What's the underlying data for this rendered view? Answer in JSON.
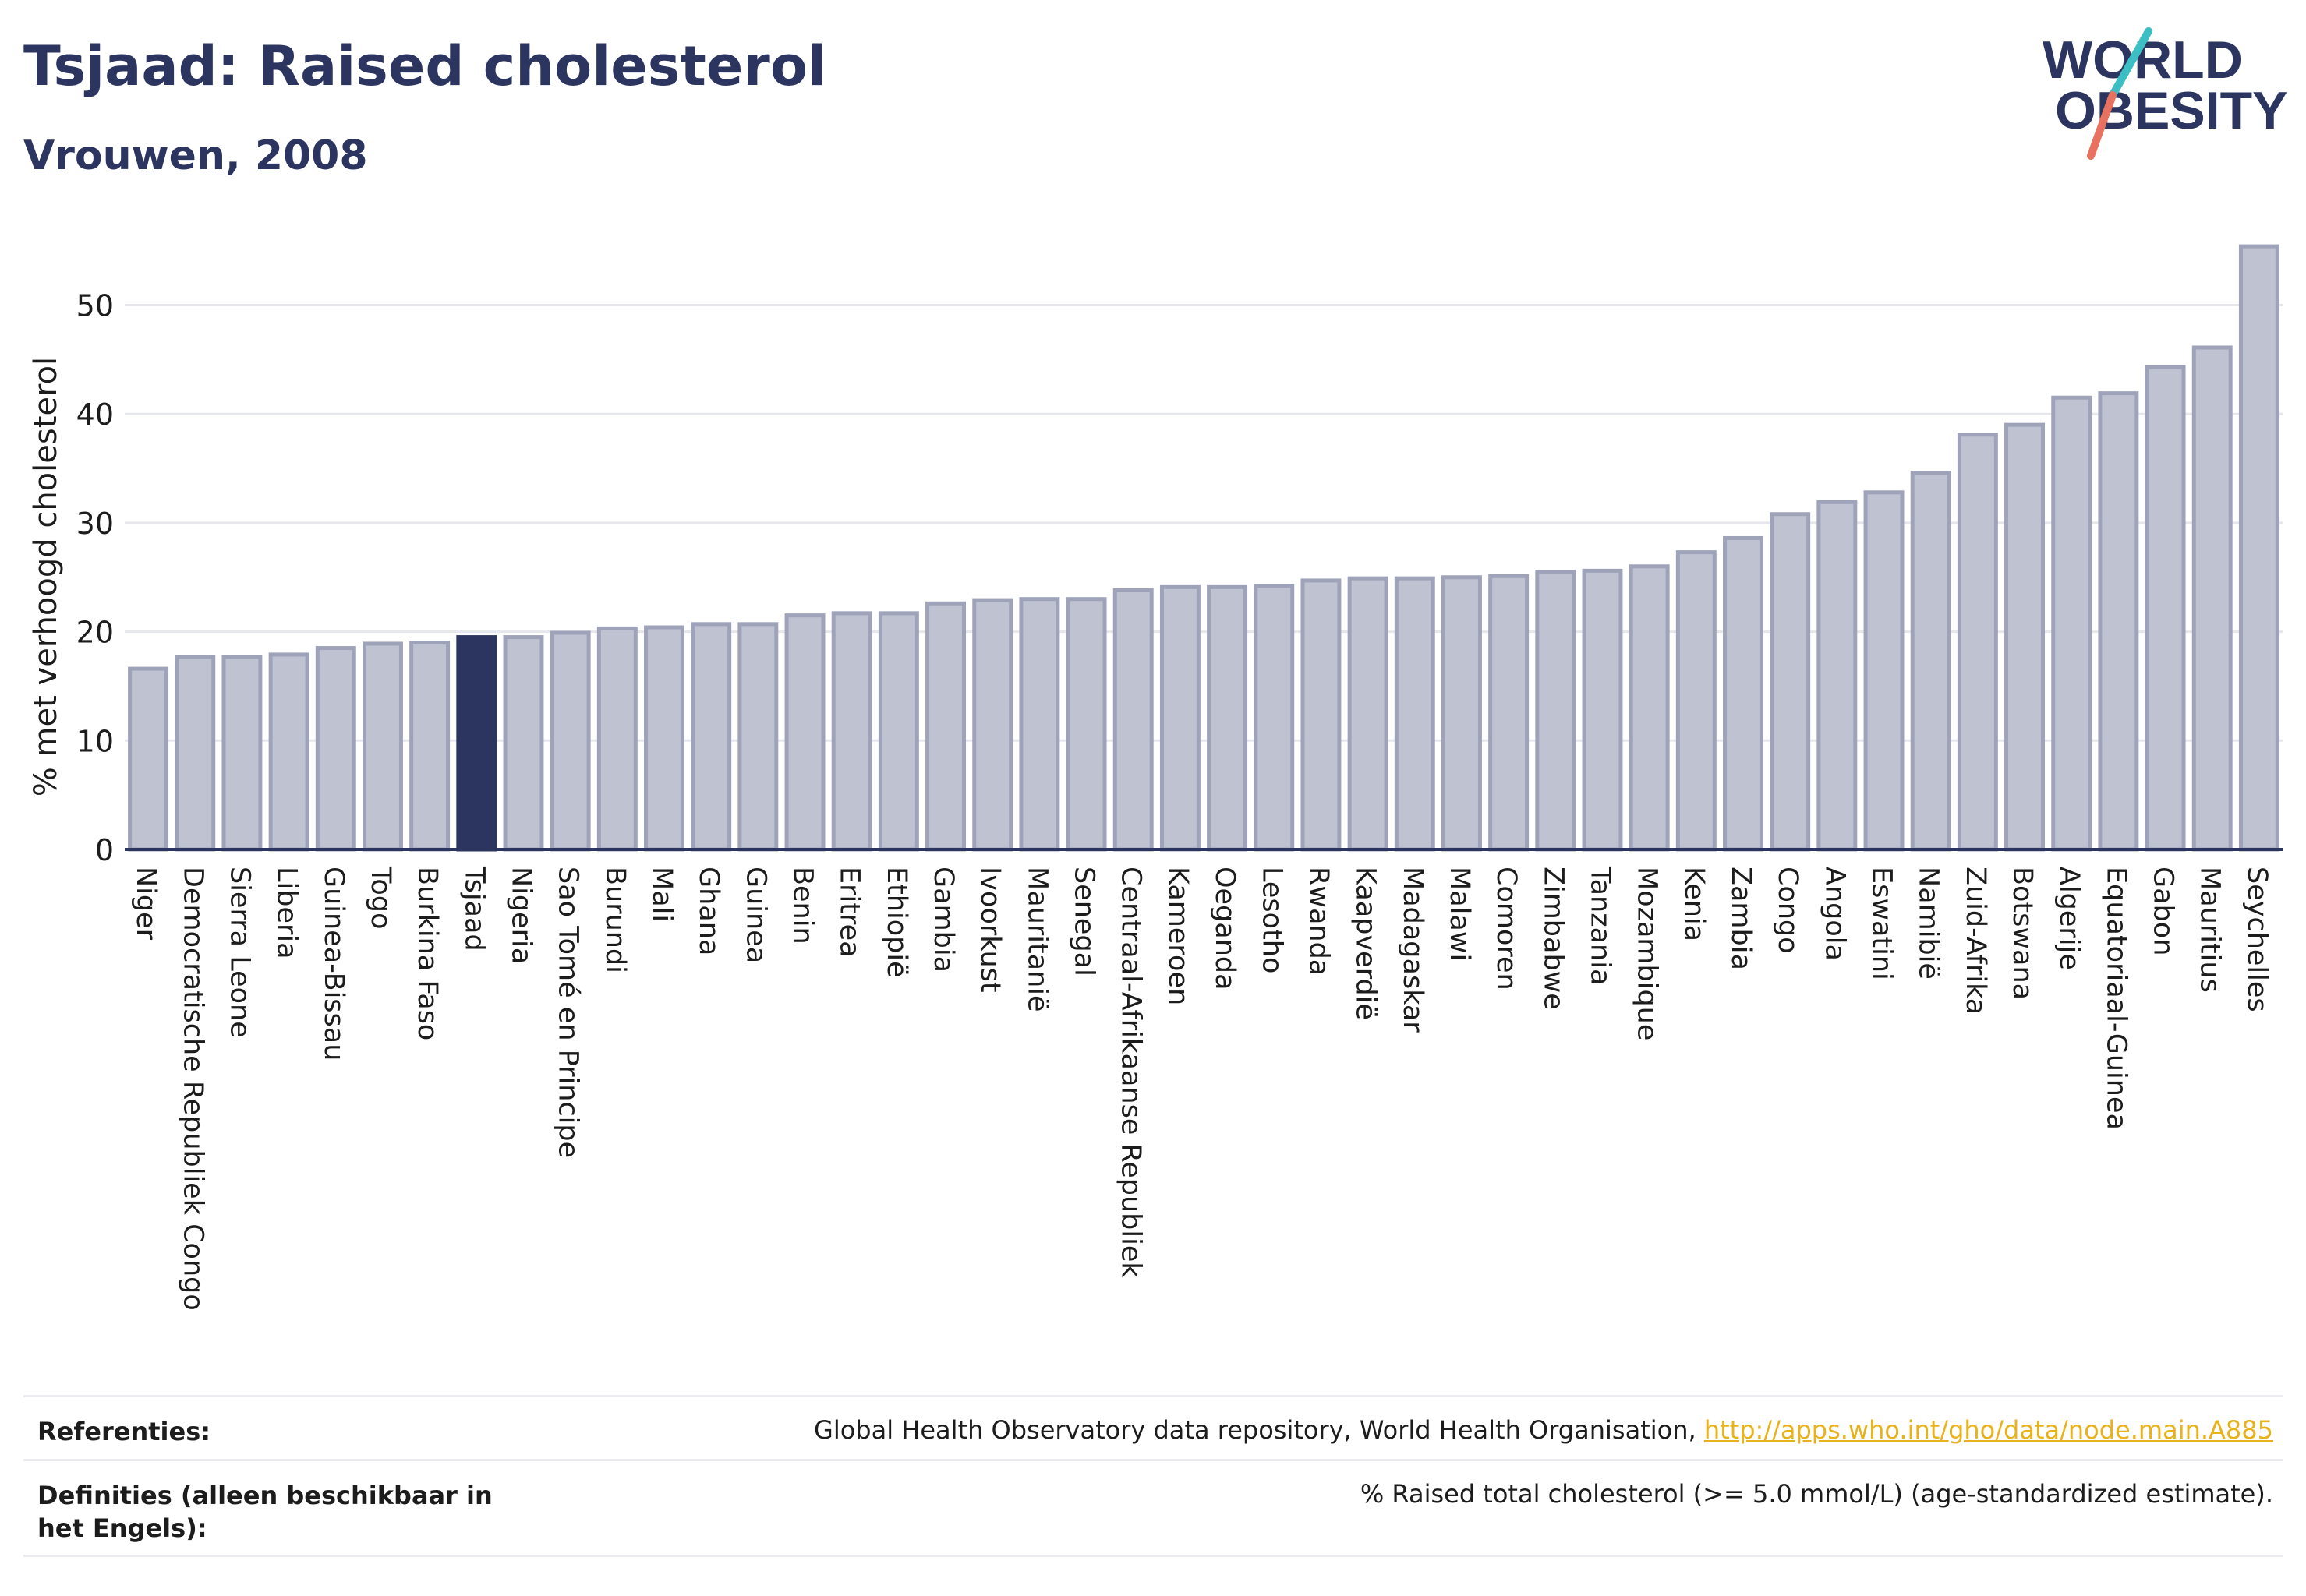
{
  "header": {
    "title": "Tsjaad: Raised cholesterol",
    "subtitle": "Vrouwen, 2008",
    "logo_line1": "WORLD",
    "logo_line2": "OBESITY"
  },
  "colors": {
    "navy": "#2b3560",
    "bar_fill": "#bfc2d1",
    "bar_stroke": "#9ea3ba",
    "highlight": "#2b3560",
    "logo_teal": "#3bbfc4",
    "logo_coral": "#e8715f",
    "link": "#e8b21c"
  },
  "chart_data": {
    "type": "bar",
    "title": "Tsjaad: Raised cholesterol",
    "subtitle": "Vrouwen, 2008",
    "xlabel": "",
    "ylabel": "% met verhoogd cholesterol",
    "ylim": [
      0,
      56
    ],
    "yticks": [
      0,
      10,
      20,
      30,
      40,
      50
    ],
    "grid": true,
    "highlight_category": "Tsjaad",
    "categories": [
      "Niger",
      "Democratische Republiek Congo",
      "Sierra Leone",
      "Liberia",
      "Guinea-Bissau",
      "Togo",
      "Burkina Faso",
      "Tsjaad",
      "Nigeria",
      "Sao Tomé en Principe",
      "Burundi",
      "Mali",
      "Ghana",
      "Guinea",
      "Benin",
      "Eritrea",
      "Ethiopië",
      "Gambia",
      "Ivoorkust",
      "Mauritanië",
      "Senegal",
      "Centraal-Afrikaanse Republiek",
      "Kameroen",
      "Oeganda",
      "Lesotho",
      "Rwanda",
      "Kaapverdië",
      "Madagaskar",
      "Malawi",
      "Comoren",
      "Zimbabwe",
      "Tanzania",
      "Mozambique",
      "Kenia",
      "Zambia",
      "Congo",
      "Angola",
      "Eswatini",
      "Namibië",
      "Zuid-Afrika",
      "Botswana",
      "Algerije",
      "Equatoriaal-Guinea",
      "Gabon",
      "Mauritius",
      "Seychelles"
    ],
    "values": [
      16.6,
      17.7,
      17.7,
      17.9,
      18.5,
      18.9,
      19.0,
      19.5,
      19.5,
      19.9,
      20.3,
      20.4,
      20.7,
      20.7,
      21.5,
      21.7,
      21.7,
      22.6,
      22.9,
      23.0,
      23.0,
      23.8,
      24.1,
      24.1,
      24.2,
      24.7,
      24.9,
      24.9,
      25.0,
      25.1,
      25.5,
      25.6,
      26.0,
      27.3,
      28.6,
      30.8,
      31.9,
      32.8,
      34.6,
      38.1,
      39.0,
      41.5,
      41.9,
      44.3,
      46.1,
      55.4
    ]
  },
  "footer": {
    "references_label": "Referenties:",
    "references_text": "Global Health Observatory data repository, World Health Organisation, ",
    "references_link": "http://apps.who.int/gho/data/node.main.A885",
    "definitions_label": "Definities (alleen beschikbaar in het Engels):",
    "definitions_text": "% Raised total cholesterol (>= 5.0 mmol/L) (age-standardized estimate)."
  }
}
